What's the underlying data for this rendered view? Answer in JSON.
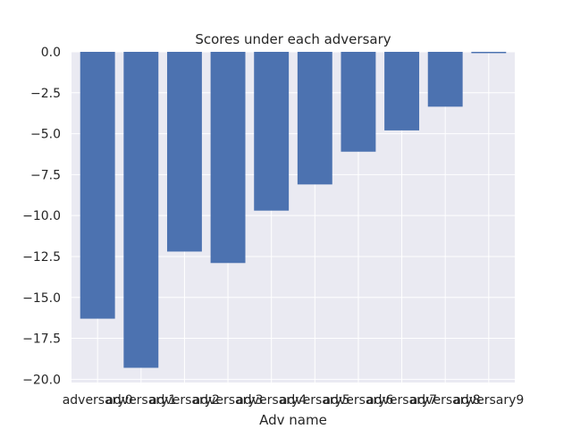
{
  "chart_data": {
    "type": "bar",
    "title": "Scores under each adversary",
    "xlabel": "Adv name",
    "ylabel": "",
    "categories": [
      "adversary0",
      "adversary1",
      "adversary2",
      "adversary3",
      "adversary4",
      "adversary5",
      "adversary6",
      "adversary7",
      "adversary8",
      "adversary9"
    ],
    "values": [
      -16.3,
      -19.3,
      -12.2,
      -12.9,
      -9.7,
      -8.1,
      -6.1,
      -4.8,
      -3.35,
      -0.08
    ],
    "ylim": [
      -20.2,
      0
    ],
    "yticks": [
      0.0,
      -2.5,
      -5.0,
      -7.5,
      -10.0,
      -12.5,
      -15.0,
      -17.5,
      -20.0
    ],
    "ytick_labels": [
      "0.0",
      "−2.5",
      "−5.0",
      "−7.5",
      "−10.0",
      "−12.5",
      "−15.0",
      "−17.5",
      "−20.0"
    ],
    "grid": true,
    "colors": {
      "bar": "#4c72b0",
      "background": "#eaeaf2",
      "grid": "#ffffff"
    }
  }
}
